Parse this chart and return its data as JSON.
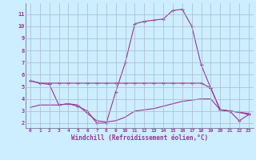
{
  "hours": [
    0,
    1,
    2,
    3,
    4,
    5,
    6,
    7,
    8,
    9,
    10,
    11,
    12,
    13,
    14,
    15,
    16,
    17,
    18,
    19,
    20,
    21,
    22,
    23
  ],
  "line_top": [
    5.5,
    5.3,
    5.3,
    5.3,
    5.3,
    5.3,
    5.3,
    5.3,
    5.3,
    5.3,
    5.3,
    5.3,
    5.3,
    5.3,
    5.3,
    5.3,
    5.3,
    5.3,
    5.3,
    4.9,
    3.1,
    3.0,
    2.9,
    2.8
  ],
  "line_mid": [
    5.5,
    5.3,
    5.2,
    3.5,
    3.6,
    3.4,
    3.0,
    2.0,
    2.0,
    4.6,
    7.0,
    10.2,
    10.4,
    10.5,
    10.6,
    11.3,
    11.4,
    10.0,
    6.8,
    4.9,
    3.1,
    3.0,
    2.2,
    2.7
  ],
  "line_bot": [
    3.3,
    3.5,
    3.5,
    3.5,
    3.6,
    3.5,
    2.8,
    2.2,
    2.1,
    2.2,
    2.5,
    3.0,
    3.1,
    3.2,
    3.4,
    3.6,
    3.8,
    3.9,
    4.0,
    4.0,
    3.1,
    3.0,
    2.9,
    2.7
  ],
  "line_color": "#993399",
  "bg_color": "#cceeff",
  "grid_color": "#aab8cc",
  "axis_color": "#993399",
  "ylabel_ticks": [
    2,
    3,
    4,
    5,
    6,
    7,
    8,
    9,
    10,
    11
  ],
  "ylim": [
    1.6,
    11.9
  ],
  "xlim": [
    -0.5,
    23.5
  ],
  "xlabel": "Windchill (Refroidissement éolien,°C)"
}
